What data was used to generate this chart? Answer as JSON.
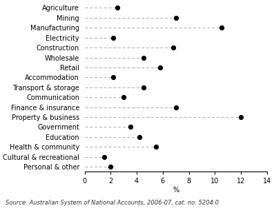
{
  "categories": [
    "Agriculture",
    "Mining",
    "Manufacturing",
    "Electricity",
    "Construction",
    "Wholesale",
    "Retail",
    "Accommodation",
    "Transport & storage",
    "Communication",
    "Finance & insurance",
    "Property & business",
    "Government",
    "Education",
    "Health & community",
    "Cultural & recreational",
    "Personal & other"
  ],
  "values": [
    2.5,
    7.0,
    10.5,
    2.2,
    6.8,
    4.5,
    5.8,
    2.2,
    4.5,
    3.0,
    7.0,
    12.0,
    3.5,
    4.2,
    5.5,
    1.5,
    2.0
  ],
  "xlabel": "%",
  "xlim": [
    0,
    14
  ],
  "xticks": [
    0,
    2,
    4,
    6,
    8,
    10,
    12,
    14
  ],
  "dot_color": "#000000",
  "dot_size": 18,
  "line_color": "#aaaaaa",
  "source_text": "Source: Australian System of National Accounts, 2006-07, cat. no. 5204.0",
  "source_fontsize": 6.0,
  "label_fontsize": 7.0,
  "tick_fontsize": 7.0
}
